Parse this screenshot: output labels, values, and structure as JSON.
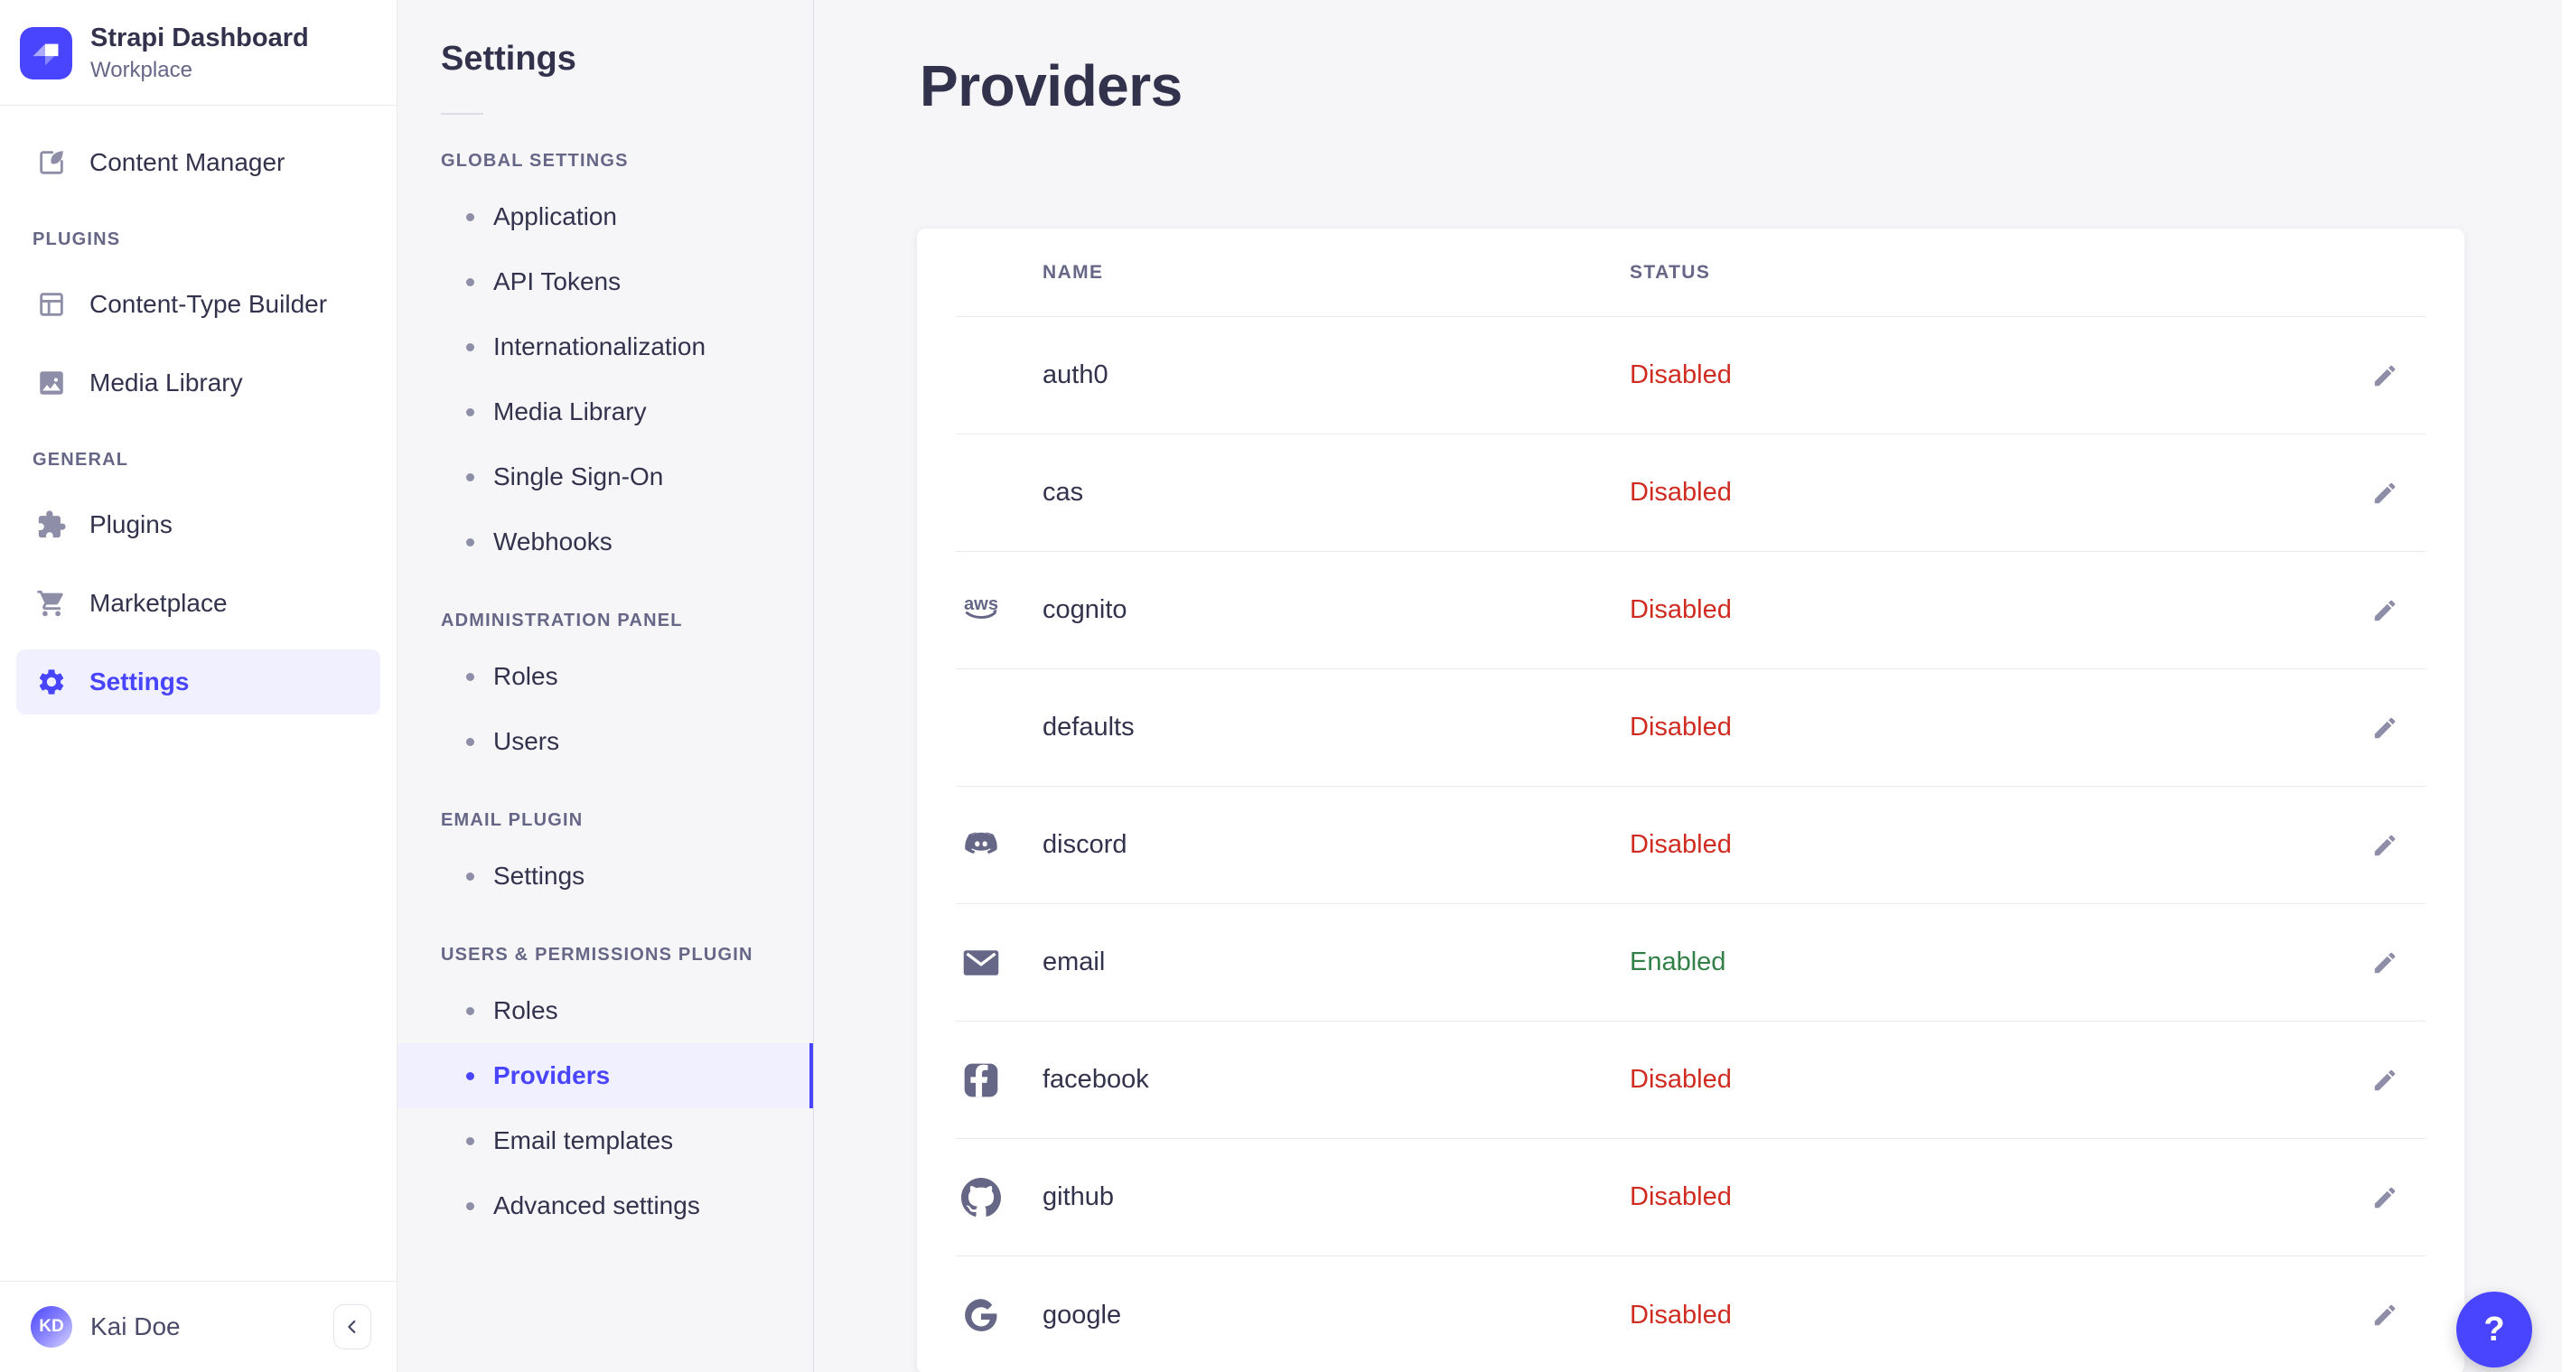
{
  "brand": {
    "title": "Strapi Dashboard",
    "subtitle": "Workplace"
  },
  "main_nav": {
    "sections": [
      {
        "label": "",
        "items": [
          {
            "label": "Content Manager",
            "icon": "content-manager",
            "active": false
          }
        ]
      },
      {
        "label": "PLUGINS",
        "items": [
          {
            "label": "Content-Type Builder",
            "icon": "content-type-builder",
            "active": false
          },
          {
            "label": "Media Library",
            "icon": "media-library",
            "active": false
          }
        ]
      },
      {
        "label": "GENERAL",
        "items": [
          {
            "label": "Plugins",
            "icon": "plugins",
            "active": false
          },
          {
            "label": "Marketplace",
            "icon": "marketplace",
            "active": false
          },
          {
            "label": "Settings",
            "icon": "settings",
            "active": true
          }
        ]
      }
    ],
    "user": {
      "name": "Kai Doe",
      "initials": "KD"
    }
  },
  "subnav": {
    "title": "Settings",
    "sections": [
      {
        "label": "GLOBAL SETTINGS",
        "active_item": "",
        "items": [
          "Application",
          "API Tokens",
          "Internationalization",
          "Media Library",
          "Single Sign-On",
          "Webhooks"
        ]
      },
      {
        "label": "ADMINISTRATION PANEL",
        "active_item": "",
        "items": [
          "Roles",
          "Users"
        ]
      },
      {
        "label": "EMAIL PLUGIN",
        "active_item": "",
        "items": [
          "Settings"
        ]
      },
      {
        "label": "USERS & PERMISSIONS PLUGIN",
        "active_item": "Providers",
        "items": [
          "Roles",
          "Providers",
          "Email templates",
          "Advanced settings"
        ]
      }
    ]
  },
  "page": {
    "title": "Providers"
  },
  "table": {
    "columns": [
      "NAME",
      "STATUS"
    ],
    "rows": [
      {
        "name": "auth0",
        "icon": "",
        "status": "Disabled"
      },
      {
        "name": "cas",
        "icon": "",
        "status": "Disabled"
      },
      {
        "name": "cognito",
        "icon": "aws",
        "status": "Disabled"
      },
      {
        "name": "defaults",
        "icon": "",
        "status": "Disabled"
      },
      {
        "name": "discord",
        "icon": "discord",
        "status": "Disabled"
      },
      {
        "name": "email",
        "icon": "envelope",
        "status": "Enabled"
      },
      {
        "name": "facebook",
        "icon": "facebook",
        "status": "Disabled"
      },
      {
        "name": "github",
        "icon": "github",
        "status": "Disabled"
      },
      {
        "name": "google",
        "icon": "google",
        "status": "Disabled"
      }
    ]
  },
  "help": {
    "label": "?"
  },
  "colors": {
    "primary": "#4945ff",
    "primary_light": "#f0f0ff",
    "danger": "#d02b20",
    "success": "#328048",
    "text": "#32324d",
    "muted": "#666687"
  }
}
